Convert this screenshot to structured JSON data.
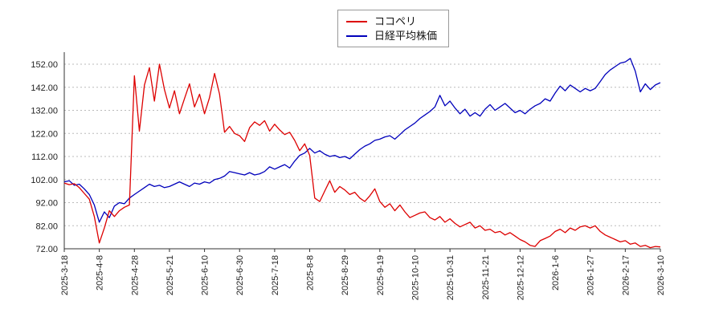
{
  "chart_data": {
    "type": "line",
    "title": "",
    "xlabel": "",
    "ylabel": "",
    "ylim": [
      72,
      152
    ],
    "grid": "horizontal-dotted",
    "legend_position": "top-center",
    "colors": {
      "grid": "#bbbbbb",
      "axis": "#333333",
      "tick_text": "#222222",
      "background": "#ffffff",
      "series_red": "#dd0000",
      "series_blue": "#0000bb"
    },
    "yticks": [
      {
        "value": 72,
        "label": "72.00"
      },
      {
        "value": 82,
        "label": "82.00"
      },
      {
        "value": 92,
        "label": "92.00"
      },
      {
        "value": 102,
        "label": "102.00"
      },
      {
        "value": 112,
        "label": "112.00"
      },
      {
        "value": 122,
        "label": "122.00"
      },
      {
        "value": 132,
        "label": "132.00"
      },
      {
        "value": 142,
        "label": "142.00"
      },
      {
        "value": 152,
        "label": "152.00"
      }
    ],
    "x_labels": [
      "2025-3-18",
      "2025-4-8",
      "2025-4-28",
      "2025-5-21",
      "2025-6-10",
      "2025-6-30",
      "2025-7-18",
      "2025-8-8",
      "2025-8-29",
      "2025-9-19",
      "2025-10-10",
      "2025-10-31",
      "2025-11-21",
      "2025-12-12",
      "2026-1-6",
      "2026-1-27",
      "2026-2-17",
      "2026-3-10"
    ],
    "series": [
      {
        "key": "kokopelli",
        "name": "ココペリ",
        "color": "#dd0000",
        "values": [
          100.5,
          99.8,
          100.2,
          98.5,
          96.0,
          93.5,
          86.0,
          74.5,
          81.0,
          88.5,
          86.0,
          88.5,
          90.0,
          91.0,
          147.0,
          123.0,
          143.0,
          150.5,
          136.0,
          152.0,
          141.0,
          133.0,
          140.5,
          130.5,
          137.0,
          143.5,
          133.5,
          139.0,
          130.5,
          137.5,
          148.0,
          139.0,
          122.5,
          125.0,
          122.0,
          121.0,
          118.5,
          124.5,
          127.0,
          125.5,
          127.5,
          123.0,
          126.0,
          123.5,
          121.5,
          122.5,
          119.0,
          114.5,
          117.5,
          112.5,
          94.0,
          92.5,
          97.0,
          101.5,
          96.5,
          99.0,
          97.5,
          95.5,
          96.5,
          94.0,
          92.5,
          95.0,
          98.0,
          92.5,
          90.0,
          91.5,
          88.5,
          91.0,
          88.0,
          85.5,
          86.5,
          87.5,
          88.0,
          85.5,
          84.5,
          86.0,
          83.5,
          85.0,
          83.0,
          81.5,
          82.5,
          83.5,
          81.0,
          82.0,
          80.0,
          80.5,
          79.0,
          79.5,
          78.0,
          79.0,
          77.5,
          76.0,
          75.0,
          73.5,
          73.0,
          75.5,
          76.5,
          77.5,
          79.5,
          80.5,
          79.0,
          81.0,
          80.0,
          81.5,
          82.0,
          81.0,
          82.0,
          79.5,
          78.0,
          77.0,
          76.0,
          75.0,
          75.5,
          74.0,
          74.5,
          73.0,
          73.5,
          72.5,
          73.0,
          72.8
        ]
      },
      {
        "key": "nikkei",
        "name": "日経平均株価",
        "color": "#0000bb",
        "values": [
          101.0,
          101.5,
          99.5,
          100.0,
          98.0,
          95.5,
          91.0,
          83.5,
          88.0,
          85.5,
          90.5,
          92.0,
          91.5,
          94.0,
          95.5,
          97.0,
          98.5,
          100.0,
          99.0,
          99.5,
          98.5,
          99.0,
          100.0,
          101.0,
          100.0,
          99.0,
          100.5,
          100.0,
          101.0,
          100.5,
          102.0,
          102.5,
          103.5,
          105.5,
          105.0,
          104.5,
          104.0,
          105.0,
          104.0,
          104.5,
          105.5,
          107.5,
          106.5,
          107.5,
          108.5,
          107.0,
          110.0,
          112.5,
          113.5,
          115.5,
          113.5,
          114.5,
          113.0,
          112.0,
          112.5,
          111.5,
          112.0,
          111.0,
          113.0,
          115.0,
          116.5,
          117.5,
          119.0,
          119.5,
          120.5,
          121.0,
          119.5,
          121.5,
          123.5,
          125.0,
          126.5,
          128.5,
          130.0,
          131.5,
          133.5,
          138.5,
          134.0,
          136.0,
          133.0,
          130.5,
          132.5,
          129.5,
          131.0,
          129.5,
          132.5,
          134.5,
          132.0,
          133.5,
          135.0,
          133.0,
          131.0,
          132.0,
          130.5,
          132.5,
          134.0,
          135.0,
          137.0,
          136.0,
          139.5,
          142.5,
          140.5,
          143.0,
          141.5,
          140.0,
          141.5,
          140.5,
          141.5,
          144.5,
          147.5,
          149.5,
          151.0,
          152.5,
          153.0,
          154.5,
          149.0,
          140.0,
          143.5,
          141.0,
          143.0,
          144.0
        ]
      }
    ]
  }
}
